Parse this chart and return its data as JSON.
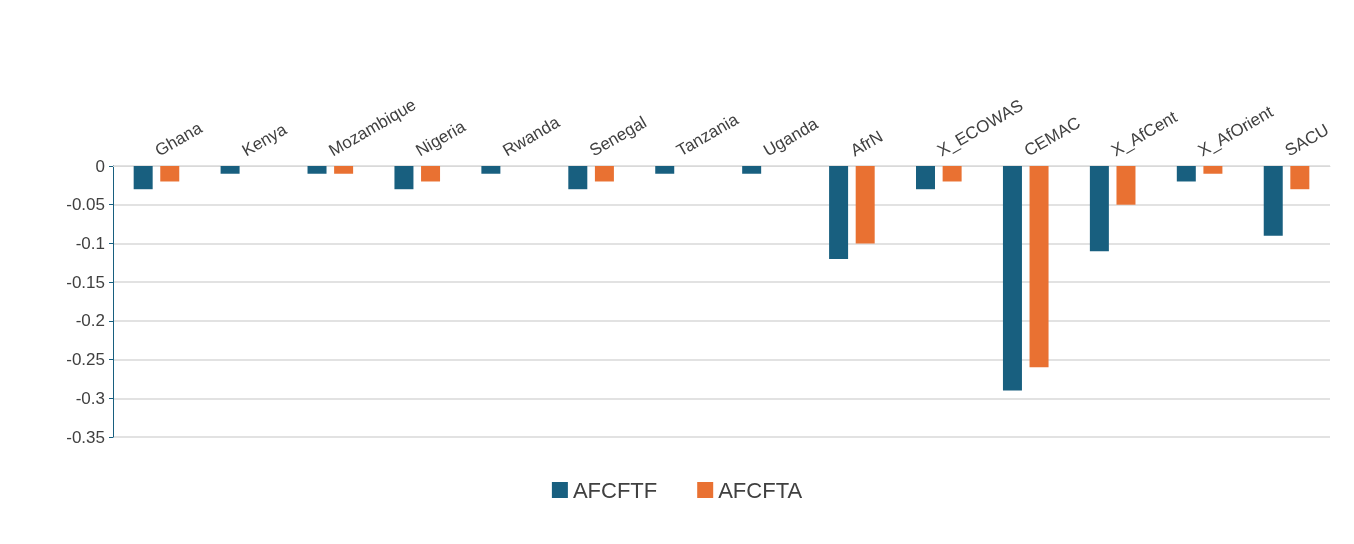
{
  "chart_data": {
    "type": "bar",
    "categories": [
      "Ghana",
      "Kenya",
      "Mozambique",
      "Nigeria",
      "Rwanda",
      "Senegal",
      "Tanzania",
      "Uganda",
      "AfrN",
      "X_ECOWAS",
      "CEMAC",
      "X_AfCent",
      "X_AfOrient",
      "SACU"
    ],
    "series": [
      {
        "name": "AFCFTF",
        "color": "#185f7f",
        "values": [
          -0.03,
          -0.01,
          -0.01,
          -0.03,
          -0.01,
          -0.03,
          -0.01,
          -0.01,
          -0.12,
          -0.03,
          -0.29,
          -0.11,
          -0.02,
          -0.09
        ]
      },
      {
        "name": "AFCFTA",
        "color": "#e97132",
        "values": [
          -0.02,
          0,
          -0.01,
          -0.02,
          0,
          -0.02,
          0,
          0,
          -0.1,
          -0.02,
          -0.26,
          -0.05,
          -0.01,
          -0.03
        ]
      }
    ],
    "ylim": [
      -0.35,
      0
    ],
    "yticks": [
      0,
      -0.05,
      -0.1,
      -0.15,
      -0.2,
      -0.25,
      -0.3,
      -0.35
    ],
    "grid": "y",
    "legend": "bottom"
  }
}
